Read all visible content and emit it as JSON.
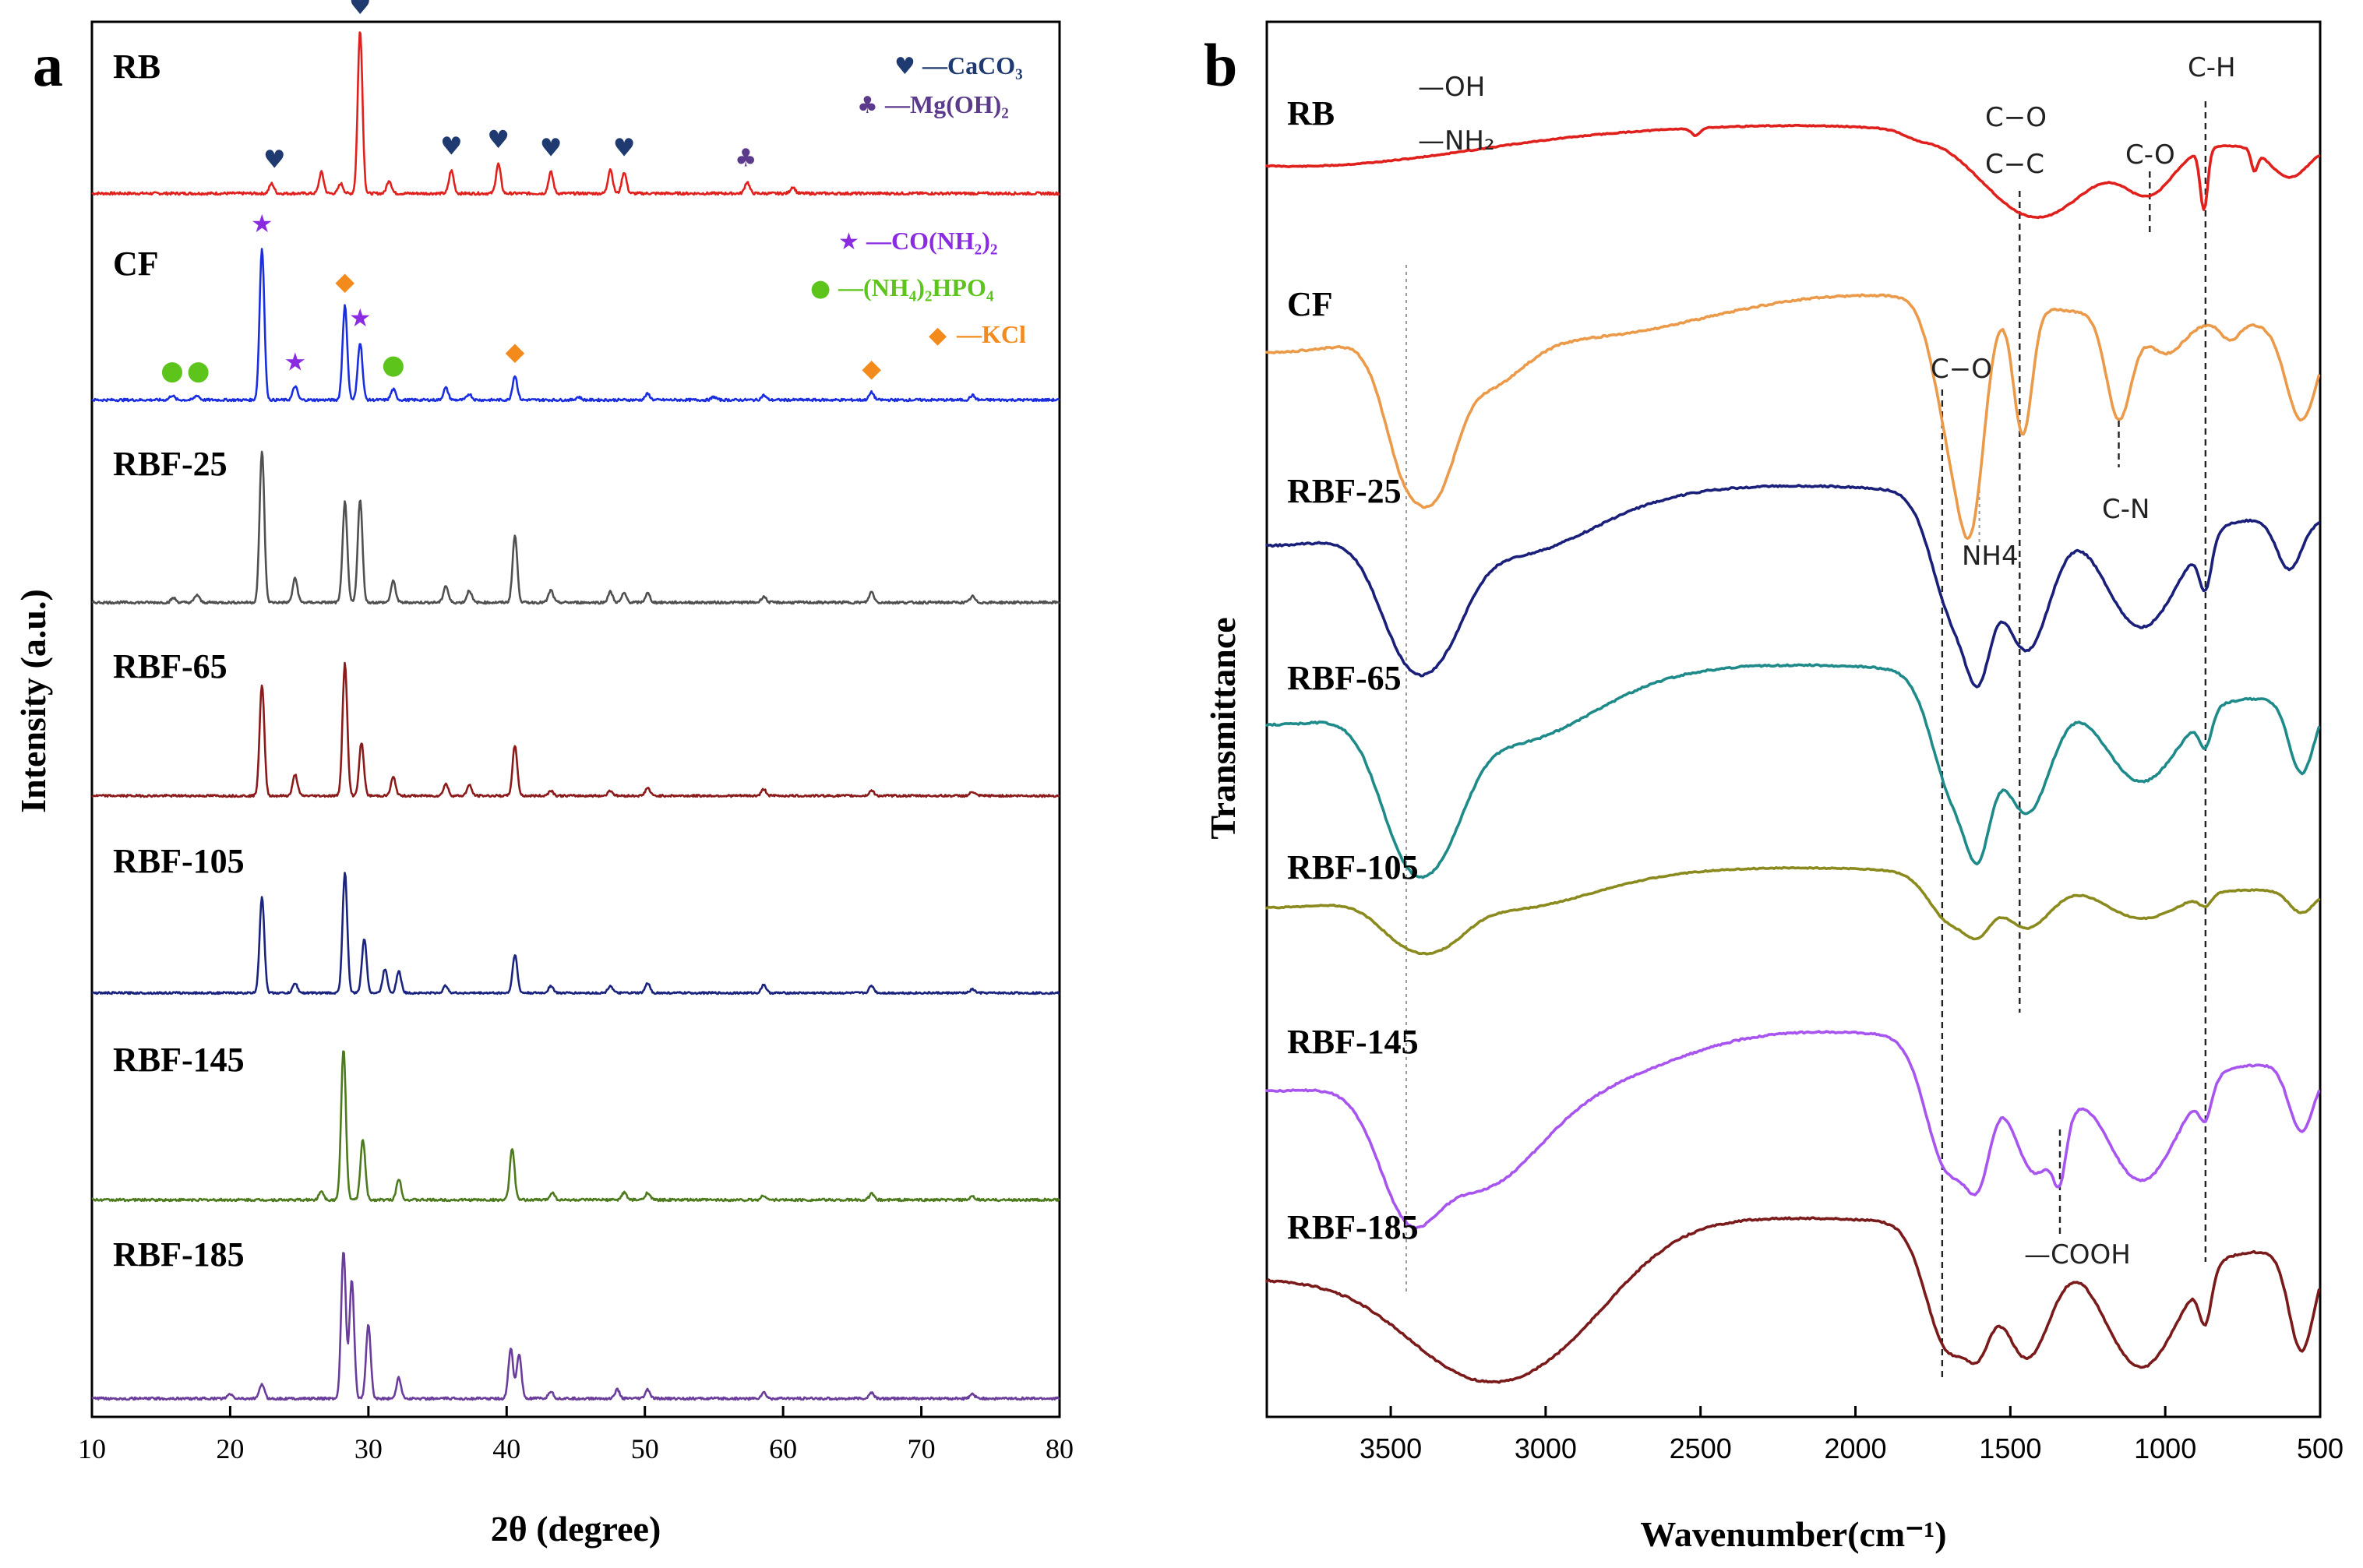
{
  "chart_data": [
    {
      "id": "a",
      "type": "line",
      "panel_letter": "a",
      "title": "",
      "xlabel": "2θ (degree)",
      "ylabel": "Intensity (a.u.)",
      "xlim": [
        10,
        80
      ],
      "xticks": [
        10,
        20,
        30,
        40,
        50,
        60,
        70,
        80
      ],
      "grid": false,
      "stacked": true,
      "legend": [
        {
          "marker": "♥",
          "text": "—CaCO₃",
          "color": "#1f3a70",
          "group": "RB"
        },
        {
          "marker": "♣",
          "text": "—Mg(OH)₂",
          "color": "#5b3a8c",
          "group": "RB"
        },
        {
          "marker": "★",
          "text": "—CO(NH₂)₂",
          "color": "#8a2be2",
          "group": "CF"
        },
        {
          "marker": "●",
          "text": "—(NH₄)₂HPO₄",
          "color": "#5cc41a",
          "group": "CF"
        },
        {
          "marker": "◆",
          "text": "—KCl",
          "color": "#f28a1c",
          "group": "CF"
        }
      ],
      "series": [
        {
          "name": "RB",
          "color": "#e0201c",
          "baseline": 0,
          "peaks": [
            [
              23.0,
              6
            ],
            [
              26.6,
              13
            ],
            [
              28.0,
              6
            ],
            [
              29.4,
              100
            ],
            [
              31.5,
              8
            ],
            [
              36.0,
              14
            ],
            [
              39.4,
              18
            ],
            [
              43.2,
              13
            ],
            [
              47.5,
              15
            ],
            [
              48.5,
              13
            ],
            [
              57.4,
              7
            ],
            [
              60.7,
              4
            ]
          ]
        },
        {
          "name": "CF",
          "color": "#1a2ee0",
          "baseline": 0,
          "peaks": [
            [
              15.8,
              3
            ],
            [
              17.6,
              3
            ],
            [
              22.3,
              100
            ],
            [
              24.7,
              9
            ],
            [
              28.3,
              62
            ],
            [
              29.4,
              38
            ],
            [
              31.8,
              7
            ],
            [
              35.6,
              8
            ],
            [
              37.3,
              4
            ],
            [
              40.6,
              16
            ],
            [
              45.2,
              2
            ],
            [
              50.2,
              4
            ],
            [
              55.0,
              2
            ],
            [
              58.6,
              3
            ],
            [
              66.4,
              5
            ],
            [
              73.7,
              3
            ]
          ]
        },
        {
          "name": "RBF-25",
          "color": "#505050",
          "baseline": 0,
          "peaks": [
            [
              15.9,
              3
            ],
            [
              17.6,
              5
            ],
            [
              22.3,
              100
            ],
            [
              24.7,
              16
            ],
            [
              28.3,
              66
            ],
            [
              29.4,
              68
            ],
            [
              31.8,
              14
            ],
            [
              35.6,
              11
            ],
            [
              37.3,
              8
            ],
            [
              40.6,
              44
            ],
            [
              43.2,
              8
            ],
            [
              47.5,
              7
            ],
            [
              48.5,
              6
            ],
            [
              50.2,
              6
            ],
            [
              58.6,
              4
            ],
            [
              66.4,
              7
            ],
            [
              73.7,
              4
            ]
          ]
        },
        {
          "name": "RBF-65",
          "color": "#8b1a1a",
          "baseline": 0,
          "peaks": [
            [
              22.3,
              84
            ],
            [
              24.7,
              16
            ],
            [
              28.3,
              100
            ],
            [
              29.5,
              40
            ],
            [
              31.8,
              14
            ],
            [
              35.6,
              9
            ],
            [
              37.3,
              8
            ],
            [
              40.6,
              38
            ],
            [
              43.2,
              4
            ],
            [
              47.5,
              4
            ],
            [
              50.2,
              6
            ],
            [
              58.6,
              5
            ],
            [
              66.4,
              4
            ],
            [
              73.7,
              3
            ]
          ]
        },
        {
          "name": "RBF-105",
          "color": "#1a237e",
          "baseline": 0,
          "peaks": [
            [
              22.3,
              80
            ],
            [
              24.7,
              8
            ],
            [
              28.3,
              100
            ],
            [
              29.7,
              45
            ],
            [
              31.2,
              20
            ],
            [
              32.2,
              18
            ],
            [
              35.6,
              6
            ],
            [
              40.6,
              32
            ],
            [
              43.2,
              6
            ],
            [
              47.5,
              6
            ],
            [
              50.2,
              8
            ],
            [
              58.6,
              7
            ],
            [
              66.4,
              6
            ],
            [
              73.7,
              3
            ]
          ]
        },
        {
          "name": "RBF-145",
          "color": "#4d7a1c",
          "baseline": 0,
          "peaks": [
            [
              26.6,
              6
            ],
            [
              28.2,
              100
            ],
            [
              29.6,
              40
            ],
            [
              32.2,
              14
            ],
            [
              40.4,
              34
            ],
            [
              43.3,
              5
            ],
            [
              48.5,
              5
            ],
            [
              50.2,
              5
            ],
            [
              58.6,
              3
            ],
            [
              66.4,
              4
            ],
            [
              73.7,
              2
            ]
          ]
        },
        {
          "name": "RBF-185",
          "color": "#6a3d9a",
          "baseline": 0,
          "peaks": [
            [
              20.0,
              3
            ],
            [
              22.3,
              10
            ],
            [
              28.2,
              100
            ],
            [
              28.8,
              80
            ],
            [
              30.0,
              50
            ],
            [
              32.2,
              14
            ],
            [
              40.3,
              34
            ],
            [
              40.9,
              30
            ],
            [
              43.2,
              5
            ],
            [
              48.0,
              6
            ],
            [
              50.2,
              6
            ],
            [
              58.6,
              4
            ],
            [
              66.4,
              4
            ],
            [
              73.7,
              3
            ]
          ]
        }
      ],
      "markers": [
        {
          "series": "RB",
          "symbol": "♥",
          "color": "#1f3a70",
          "x": [
            23.2,
            29.4,
            36.0,
            39.4,
            43.2,
            48.5
          ]
        },
        {
          "series": "RB",
          "symbol": "♣",
          "color": "#5b3a8c",
          "x": [
            57.3
          ]
        },
        {
          "series": "CF",
          "symbol": "★",
          "color": "#8a2be2",
          "x": [
            22.3,
            24.7,
            29.4
          ]
        },
        {
          "series": "CF",
          "symbol": "●",
          "color": "#5cc41a",
          "x": [
            15.8,
            17.7,
            31.8
          ]
        },
        {
          "series": "CF",
          "symbol": "◆",
          "color": "#f28a1c",
          "x": [
            28.3,
            40.6,
            66.4
          ]
        }
      ]
    },
    {
      "id": "b",
      "type": "line",
      "panel_letter": "b",
      "title": "",
      "xlabel": "Wavenumber(cm⁻¹)",
      "ylabel": "Transmittance",
      "xlim": [
        3900,
        500
      ],
      "xticks": [
        3500,
        3000,
        2500,
        2000,
        1500,
        1000,
        500
      ],
      "grid": false,
      "stacked": true,
      "series": [
        {
          "name": "RB",
          "color": "#e0201c"
        },
        {
          "name": "CF",
          "color": "#eb9a4a"
        },
        {
          "name": "RBF-25",
          "color": "#1a1f7a"
        },
        {
          "name": "RBF-65",
          "color": "#1f8a8a"
        },
        {
          "name": "RBF-105",
          "color": "#8a8a1f"
        },
        {
          "name": "RBF-145",
          "color": "#a855f0"
        },
        {
          "name": "RBF-185",
          "color": "#7a1a1a"
        }
      ],
      "annotations": [
        {
          "text": "—OH",
          "x": 3500
        },
        {
          "text": "—NH₂",
          "x": 3500
        },
        {
          "text": "C−O",
          "x": 1450
        },
        {
          "text": "C−C",
          "x": 1450
        },
        {
          "text": "C-O",
          "x": 1060
        },
        {
          "text": "C-H",
          "x": 875
        },
        {
          "text": "C−O",
          "x": 1700
        },
        {
          "text": "C-N",
          "x": 1100
        },
        {
          "text": "NH4",
          "x": 1640
        },
        {
          "text": "—COOH",
          "x": 1400
        }
      ],
      "guide_lines": [
        3450,
        1720,
        1600,
        1470,
        1340,
        1150,
        1050,
        870
      ]
    }
  ]
}
